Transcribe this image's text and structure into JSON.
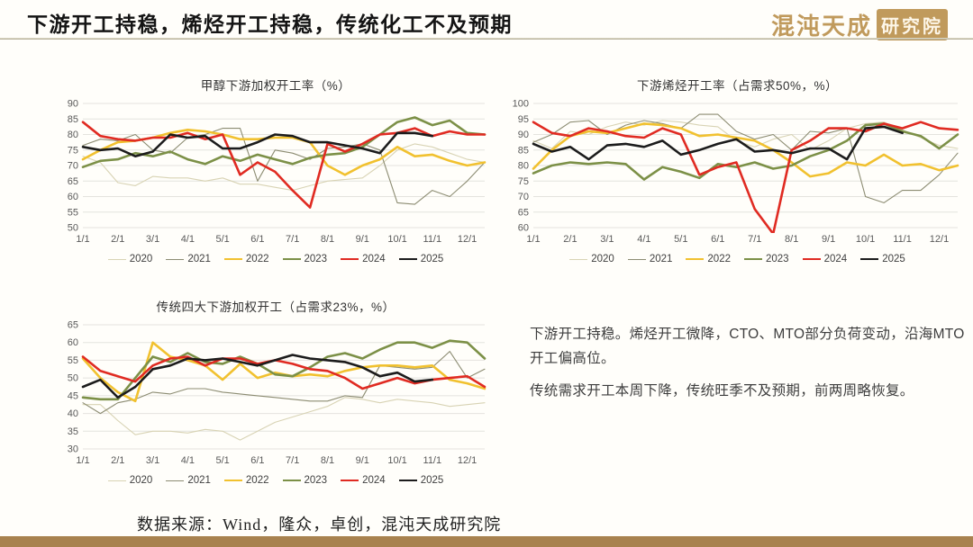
{
  "header": {
    "title": "下游开工持稳，烯烃开工持稳，传统化工不及预期",
    "logo": {
      "brand": "混沌天成",
      "suffix": "研究院"
    }
  },
  "colors": {
    "brand_gold": "#c09a5c",
    "footer_bar": "#a8824f",
    "gridline": "#e4e3de",
    "axis_text": "#595959"
  },
  "chart_data": [
    {
      "type": "line",
      "title": "甲醇下游加权开工率（%）",
      "x_labels": [
        "1/1",
        "2/1",
        "3/1",
        "4/1",
        "5/1",
        "6/1",
        "7/1",
        "8/1",
        "9/1",
        "10/1",
        "11/1",
        "12/1"
      ],
      "points_per_month": 2,
      "ylim": [
        50,
        90
      ],
      "ytick_step": 5,
      "grid": true,
      "legend_position": "bottom",
      "series": [
        {
          "name": "2020",
          "color": "#d8d3b4",
          "width": 1.1,
          "values": [
            73,
            71,
            64.5,
            63.5,
            66.5,
            66,
            66,
            65,
            66,
            64,
            64,
            63,
            62,
            63.5,
            65,
            65.5,
            66,
            70,
            75,
            77,
            76,
            74,
            72,
            71
          ]
        },
        {
          "name": "2021",
          "color": "#8c8c72",
          "width": 1.1,
          "values": [
            76.5,
            78.5,
            78,
            80,
            75,
            74,
            79,
            80,
            82,
            82,
            65,
            75,
            74,
            72,
            75.5,
            76,
            77,
            75,
            58,
            57.5,
            62,
            60,
            65,
            71
          ]
        },
        {
          "name": "2022",
          "color": "#f1c12f",
          "width": 2.6,
          "values": [
            72,
            75,
            77.5,
            78,
            79,
            80.5,
            81.5,
            81,
            80,
            78.5,
            78.5,
            79,
            79,
            77.5,
            70,
            67,
            70,
            72,
            76,
            73,
            73.5,
            71.5,
            70,
            71
          ]
        },
        {
          "name": "2023",
          "color": "#7c9047",
          "width": 2.6,
          "values": [
            69.5,
            71.5,
            72,
            74,
            73,
            74.5,
            72,
            70.5,
            73,
            71.5,
            73.5,
            72,
            70.5,
            72.5,
            73.5,
            74,
            76,
            80,
            84,
            85.5,
            83,
            84.5,
            80.5,
            80
          ]
        },
        {
          "name": "2024",
          "color": "#e02b22",
          "width": 2.6,
          "values": [
            84,
            79.5,
            78.5,
            78,
            79,
            79,
            80.5,
            78.5,
            80,
            67,
            71,
            68,
            62,
            56.5,
            77,
            74.5,
            77,
            80,
            80.5,
            82,
            79.5,
            81,
            80,
            80
          ]
        },
        {
          "name": "2025",
          "color": "#1c1c1c",
          "width": 2.6,
          "values": [
            76,
            75,
            75.5,
            73,
            74.5,
            80,
            79,
            79.5,
            75.5,
            75.5,
            77.5,
            80,
            79.5,
            77.5,
            77.5,
            76.5,
            75.5,
            74,
            80.5,
            80.5,
            79.5,
            null,
            null,
            null
          ]
        }
      ]
    },
    {
      "type": "line",
      "title": "下游烯烃开工率（占需求50%，%）",
      "x_labels": [
        "1/1",
        "2/1",
        "3/1",
        "4/1",
        "5/1",
        "6/1",
        "7/1",
        "8/1",
        "9/1",
        "10/1",
        "11/1",
        "12/1"
      ],
      "points_per_month": 2,
      "ylim": [
        60,
        100
      ],
      "ytick_step": 5,
      "grid": true,
      "legend_position": "bottom",
      "series": [
        {
          "name": "2020",
          "color": "#d8d3b4",
          "width": 1.1,
          "values": [
            88,
            85.5,
            91,
            90,
            92.5,
            94,
            93,
            94.5,
            94,
            93,
            92.5,
            88,
            86,
            88.5,
            90,
            85,
            88,
            92,
            93.5,
            94,
            91.5,
            89,
            86.5,
            85.5
          ]
        },
        {
          "name": "2021",
          "color": "#8c8c72",
          "width": 1.1,
          "values": [
            87.5,
            90,
            94,
            94.5,
            90,
            93,
            94.5,
            93.5,
            92,
            96.5,
            96.5,
            91,
            88.5,
            90,
            85,
            91,
            90.5,
            92,
            70,
            68,
            72,
            72,
            77,
            84
          ]
        },
        {
          "name": "2022",
          "color": "#f1c12f",
          "width": 2.6,
          "values": [
            79,
            85,
            89.5,
            91,
            90.5,
            92,
            93.5,
            93,
            92,
            89.5,
            90,
            89,
            88,
            85,
            81,
            76.5,
            77.5,
            81,
            80,
            83.5,
            80,
            80.5,
            78.5,
            80
          ]
        },
        {
          "name": "2023",
          "color": "#7c9047",
          "width": 2.6,
          "values": [
            77.5,
            80,
            81,
            80.5,
            81,
            80.5,
            75.5,
            79.5,
            78,
            76,
            80.5,
            79.5,
            81,
            79,
            80,
            83,
            85,
            88,
            93,
            93.5,
            91,
            89.5,
            85.5,
            90
          ]
        },
        {
          "name": "2024",
          "color": "#e02b22",
          "width": 2.6,
          "values": [
            94,
            90.5,
            89.5,
            92,
            91,
            89.5,
            89,
            92,
            90,
            77,
            79.5,
            81,
            66,
            58,
            85,
            88,
            92,
            92,
            91,
            93.5,
            92,
            94,
            92,
            91.5
          ]
        },
        {
          "name": "2025",
          "color": "#1c1c1c",
          "width": 2.6,
          "values": [
            87,
            84.5,
            86,
            82,
            86.5,
            87,
            86,
            88,
            83.5,
            85,
            87,
            88.5,
            84.5,
            85,
            84,
            85.5,
            85.5,
            82,
            92,
            92.5,
            90.5,
            null,
            null,
            null
          ]
        }
      ]
    },
    {
      "type": "line",
      "title": "传统四大下游加权开工（占需求23%，%）",
      "x_labels": [
        "1/1",
        "2/1",
        "3/1",
        "4/1",
        "5/1",
        "6/1",
        "7/1",
        "8/1",
        "9/1",
        "10/1",
        "11/1",
        "12/1"
      ],
      "points_per_month": 2,
      "ylim": [
        30,
        65
      ],
      "ytick_step": 5,
      "grid": true,
      "legend_position": "bottom",
      "series": [
        {
          "name": "2020",
          "color": "#d8d3b4",
          "width": 1.1,
          "values": [
            42.5,
            42.5,
            38,
            34,
            35,
            35,
            34.5,
            35.5,
            35,
            32.5,
            35,
            37.5,
            39,
            40.5,
            42,
            44.5,
            44,
            43,
            44,
            43.5,
            43,
            42,
            42.5,
            43
          ]
        },
        {
          "name": "2021",
          "color": "#8c8c72",
          "width": 1.1,
          "values": [
            43,
            40,
            43,
            44,
            46,
            45.5,
            47,
            47,
            46,
            45.5,
            45,
            44.5,
            44,
            43.5,
            43.5,
            45,
            44.5,
            53.5,
            53,
            52.5,
            53,
            57.5,
            50,
            52.5
          ]
        },
        {
          "name": "2022",
          "color": "#f1c12f",
          "width": 2.6,
          "values": [
            55.5,
            50,
            46,
            43.5,
            60,
            56,
            55,
            53.5,
            49.5,
            54,
            50,
            51.5,
            50.5,
            51,
            50.5,
            52,
            53,
            53.5,
            53.5,
            53,
            53.5,
            49.5,
            48.5,
            47
          ]
        },
        {
          "name": "2023",
          "color": "#7c9047",
          "width": 2.6,
          "values": [
            44.5,
            44,
            44,
            50,
            56,
            54.5,
            57,
            54.5,
            54,
            56,
            54,
            51,
            50.5,
            53,
            56,
            57,
            55.5,
            58,
            60,
            60,
            58.5,
            60.5,
            60,
            55.5
          ]
        },
        {
          "name": "2024",
          "color": "#e02b22",
          "width": 2.6,
          "values": [
            56,
            52,
            50.5,
            49,
            53.5,
            55.5,
            56,
            53.5,
            55.5,
            55.5,
            54,
            55,
            54,
            52.5,
            52,
            50,
            47,
            48.5,
            50,
            48.5,
            49.5,
            50,
            50.5,
            47.5
          ]
        },
        {
          "name": "2025",
          "color": "#1c1c1c",
          "width": 2.6,
          "values": [
            47.5,
            49.5,
            44.5,
            47.5,
            52.5,
            53.5,
            55.5,
            55,
            55.5,
            54.5,
            53.5,
            55,
            56.5,
            55.5,
            55,
            54.5,
            53,
            50.5,
            51.5,
            49,
            49.5,
            null,
            null,
            null
          ]
        }
      ]
    }
  ],
  "commentary": {
    "p1": "下游开工持稳。烯烃开工微降，CTO、MTO部分负荷变动，沿海MTO开工偏高位。",
    "p2": "传统需求开工本周下降，传统旺季不及预期，前两周略恢复。"
  },
  "source": "数据来源：Wind，隆众，卓创，混沌天成研究院"
}
